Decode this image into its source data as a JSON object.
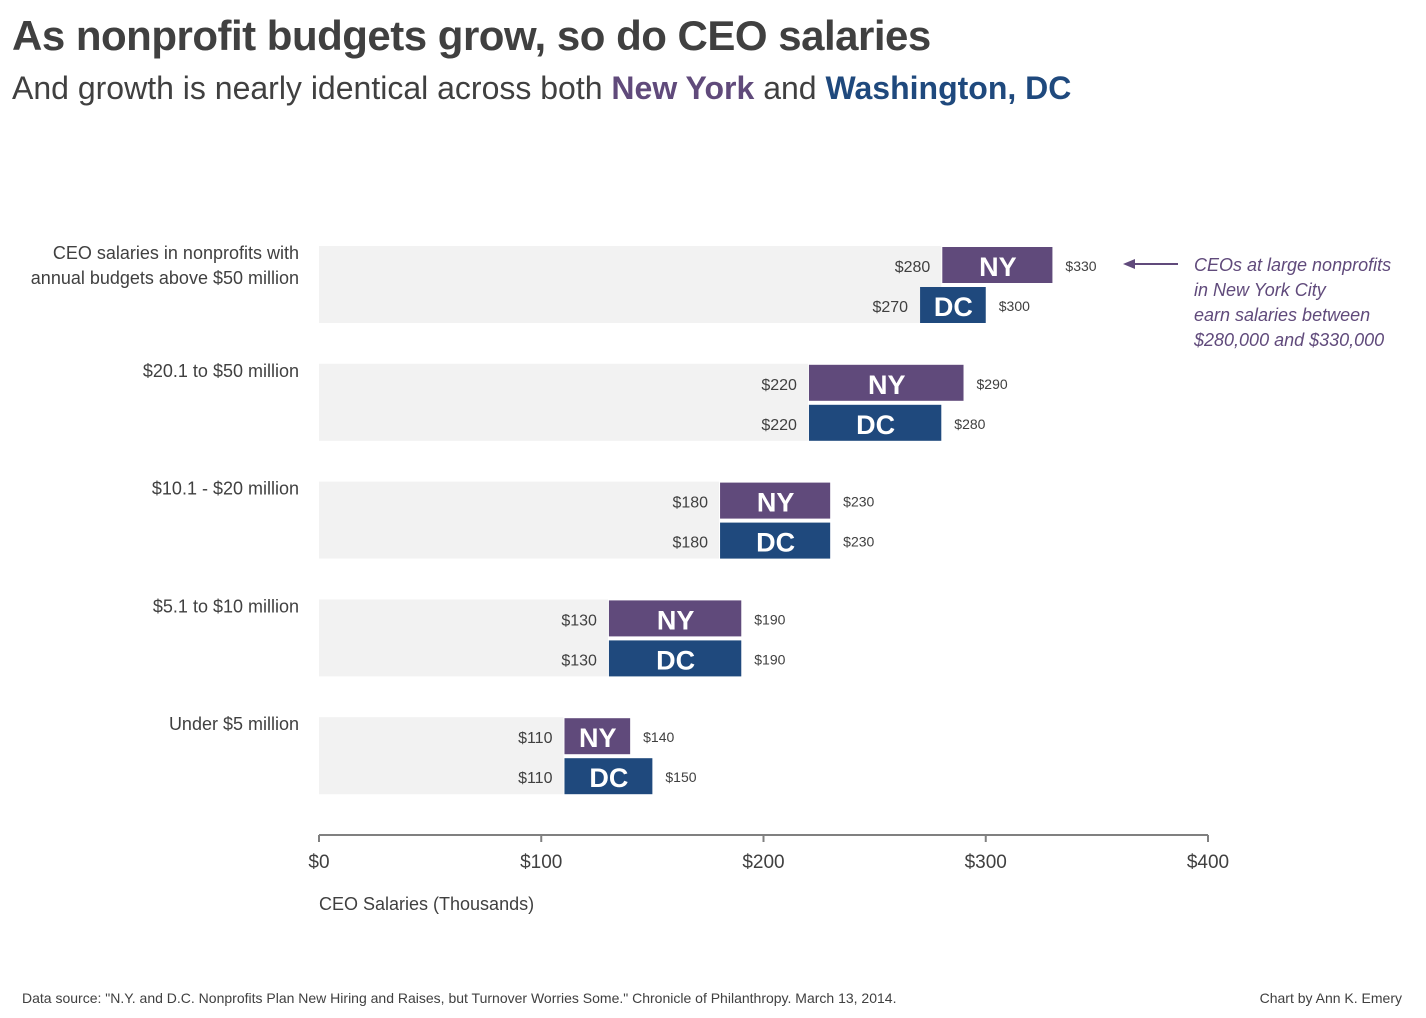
{
  "title": "As nonprofit budgets grow, so do CEO salaries",
  "subtitle": {
    "prefix": "And growth is nearly identical across both ",
    "ny": "New York",
    "middle": " and ",
    "dc": "Washington, DC"
  },
  "colors": {
    "ny": "#604a7b",
    "dc": "#1f497d",
    "background_bar": "#f2f2f2",
    "text": "#404040"
  },
  "chart_data": {
    "type": "bar",
    "subtype": "floating range bars (low to high)",
    "xlabel": "CEO Salaries (Thousands)",
    "xlim": [
      0,
      400
    ],
    "xticks": [
      "$0",
      "$100",
      "$200",
      "$300",
      "$400"
    ],
    "grid": false,
    "categories": [
      [
        "CEO salaries in nonprofits with",
        "annual budgets above $50 million"
      ],
      [
        "$20.1 to $50 million"
      ],
      [
        "$10.1 - $20 million"
      ],
      [
        "$5.1 to $10 million"
      ],
      [
        "Under $5 million"
      ]
    ],
    "series": [
      {
        "name": "NY",
        "low": [
          280,
          220,
          180,
          130,
          110
        ],
        "high": [
          330,
          290,
          230,
          190,
          140
        ],
        "low_labels": [
          "$280",
          "$220",
          "$180",
          "$130",
          "$110"
        ],
        "high_labels": [
          "$330",
          "$290",
          "$230",
          "$190",
          "$140"
        ]
      },
      {
        "name": "DC",
        "low": [
          270,
          220,
          180,
          130,
          110
        ],
        "high": [
          300,
          280,
          230,
          190,
          150
        ],
        "low_labels": [
          "$270",
          "$220",
          "$180",
          "$130",
          "$110"
        ],
        "high_labels": [
          "$300",
          "$280",
          "$230",
          "$190",
          "$150"
        ]
      }
    ],
    "annotation": [
      "CEOs at large nonprofits",
      "in New York City",
      "earn salaries between",
      "$280,000 and $330,000"
    ]
  },
  "footer": {
    "source": "Data source: \"N.Y. and D.C. Nonprofits Plan New Hiring and Raises, but Turnover Worries Some.\" Chronicle of Philanthropy. March 13, 2014.",
    "credit": "Chart by Ann K. Emery"
  }
}
